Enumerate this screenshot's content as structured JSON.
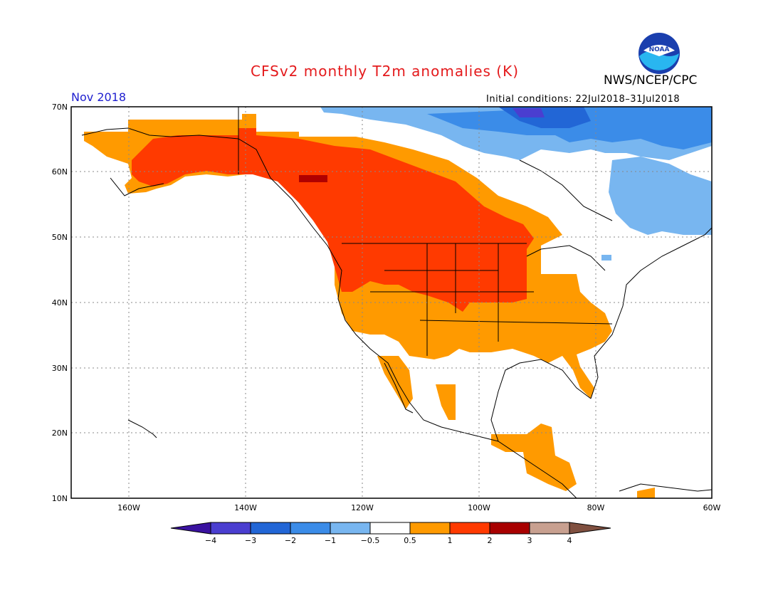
{
  "title": "CFSv2 monthly T2m anomalies (K)",
  "agency": "NWS/NCEP/CPC",
  "logo_text": "NOAA",
  "period": "Nov 2018",
  "initial_conditions": "Initial conditions: 22Jul2018–31Jul2018",
  "lat_labels": [
    "70N",
    "60N",
    "50N",
    "40N",
    "30N",
    "20N",
    "10N"
  ],
  "lon_labels": [
    "160W",
    "140W",
    "120W",
    "100W",
    "80W",
    "60W"
  ],
  "colorbar": {
    "labels": [
      "−4",
      "−3",
      "−2",
      "−1",
      "−0.5",
      "0.5",
      "1",
      "2",
      "3",
      "4"
    ],
    "colors": [
      "#3a12a0",
      "#4a3ed0",
      "#2266d6",
      "#3b8ce8",
      "#78b6f0",
      "#ffffff",
      "#ff9a00",
      "#ff3a00",
      "#a80000",
      "#c8a090",
      "#805040"
    ]
  },
  "anomaly_colors": {
    "hot": "#ff3a00",
    "warm": "#ff9a00",
    "very_hot": "#b00000",
    "cool": "#78b6f0",
    "cold": "#3b8ce8",
    "colder": "#2266d6",
    "coldest": "#4a3ed0"
  }
}
